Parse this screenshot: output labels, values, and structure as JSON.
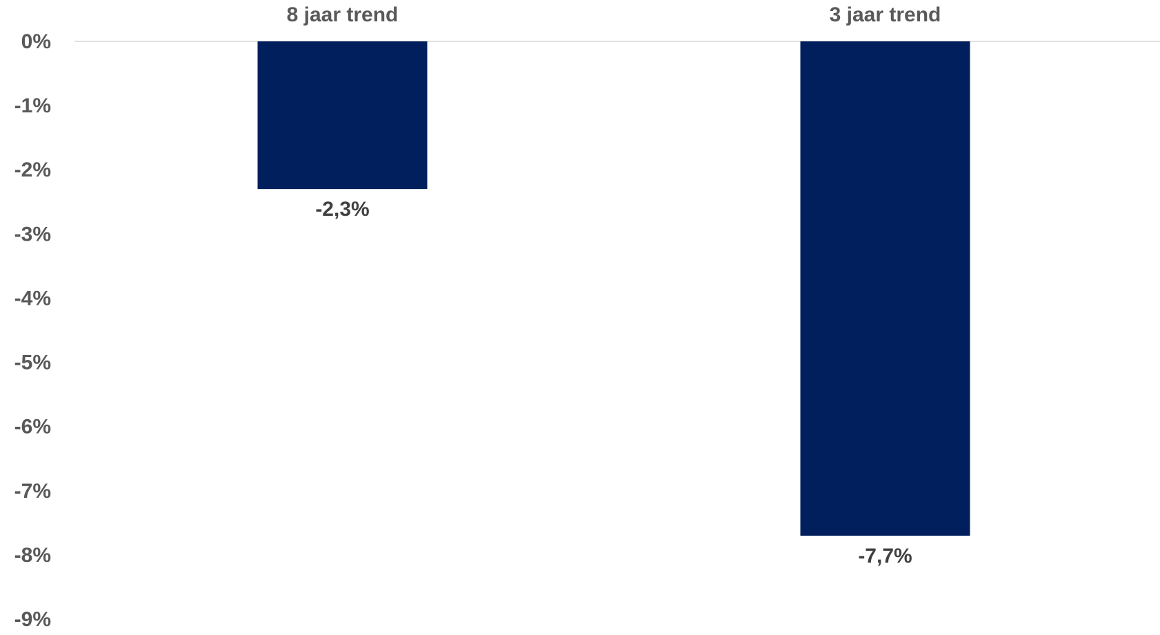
{
  "chart_data": {
    "type": "bar",
    "categories": [
      "8 jaar trend",
      "3 jaar trend"
    ],
    "values": [
      -2.3,
      -7.7
    ],
    "data_labels": [
      "-2,3%",
      "-7,7%"
    ],
    "title": "",
    "xlabel": "",
    "ylabel": "",
    "ylim": [
      -9,
      0
    ],
    "yticks": [
      0,
      -1,
      -2,
      -3,
      -4,
      -5,
      -6,
      -7,
      -8,
      -9
    ],
    "ytick_labels": [
      "0%",
      "-1%",
      "-2%",
      "-3%",
      "-4%",
      "-5%",
      "-6%",
      "-7%",
      "-8%",
      "-9%"
    ],
    "category_axis_position": "top",
    "grid": false,
    "legend": "none",
    "colors": {
      "bar": "#001F5C",
      "axis_line": "#D9D9D9",
      "tick_text": "#595959",
      "data_label_text": "#404040"
    }
  }
}
